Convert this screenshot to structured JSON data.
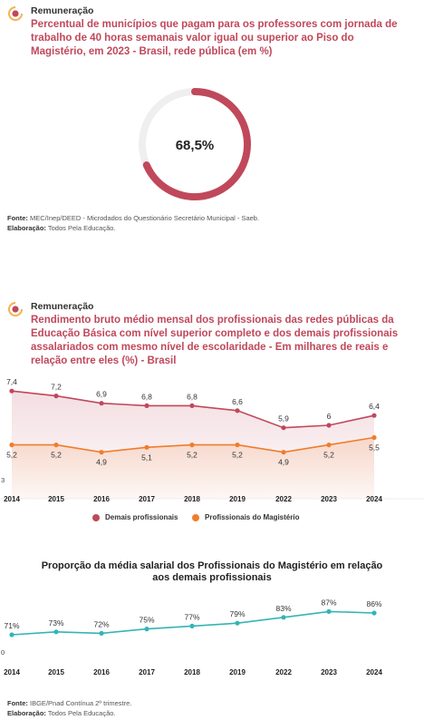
{
  "block1": {
    "kicker": "Remuneração",
    "title": "Percentual de municípios que pagam para os professores com jornada de trabalho de 40 horas semanais valor igual ou superior ao Piso do Magistério, em 2023 - Brasil, rede pública (em %)",
    "source_label": "Fonte:",
    "source_text": "MEC/Inep/DEED - Microdados do Questionário Secretário Municipal - Saeb.",
    "elab_label": "Elaboração:",
    "elab_text": "Todos Pela Educação."
  },
  "block2": {
    "kicker": "Remuneração",
    "title": "Rendimento bruto médio mensal dos profissionais das redes públicas da Educação Básica com nível superior completo e dos demais profissionais assalariados com mesmo nível de escolaridade - Em milhares de reais e relação entre eles (%) - Brasil",
    "subtitle": "Proporção da média salarial dos Profissionais do Magistério em relação aos demais profissionais",
    "source_label": "Fonte:",
    "source_text": "IBGE/Pnad Contínua 2º trimestre.",
    "elab_label": "Elaboração:",
    "elab_text": "Todos Pela Educação."
  },
  "colors": {
    "accent": "#c0485b",
    "orange": "#f07d2b",
    "teal": "#35b4b6",
    "icon_orange": "#f6b14a"
  },
  "chart_data": [
    {
      "type": "pie",
      "subtype": "donut",
      "value": 68.5,
      "max": 100,
      "label": "68,5%"
    },
    {
      "type": "line",
      "categories": [
        "2014",
        "2015",
        "2016",
        "2017",
        "2018",
        "2019",
        "2022",
        "2023",
        "2024"
      ],
      "series": [
        {
          "name": "Demais profissionais",
          "values": [
            7.4,
            7.2,
            6.9,
            6.8,
            6.8,
            6.6,
            5.9,
            6.0,
            6.4
          ],
          "labels": [
            "7,4",
            "7,2",
            "6,9",
            "6,8",
            "6,8",
            "6,6",
            "5,9",
            "6",
            "6,4"
          ]
        },
        {
          "name": "Profissionais do Magistério",
          "values": [
            5.2,
            5.2,
            4.9,
            5.1,
            5.2,
            5.2,
            4.9,
            5.2,
            5.5
          ],
          "labels": [
            "5,2",
            "5,2",
            "4,9",
            "5,1",
            "5,2",
            "5,2",
            "4,9",
            "5,2",
            "5,5"
          ]
        }
      ],
      "ymin_label": "3",
      "ylim": [
        3,
        8
      ],
      "legend": "bottom"
    },
    {
      "type": "line",
      "categories": [
        "2014",
        "2015",
        "2016",
        "2017",
        "2018",
        "2019",
        "2022",
        "2023",
        "2024"
      ],
      "series": [
        {
          "values": [
            71,
            73,
            72,
            75,
            77,
            79,
            83,
            87,
            86
          ],
          "labels": [
            "71%",
            "73%",
            "72%",
            "75%",
            "77%",
            "79%",
            "83%",
            "87%",
            "86%"
          ]
        }
      ],
      "ymin_label": "0",
      "ylim": [
        0,
        100
      ]
    }
  ]
}
